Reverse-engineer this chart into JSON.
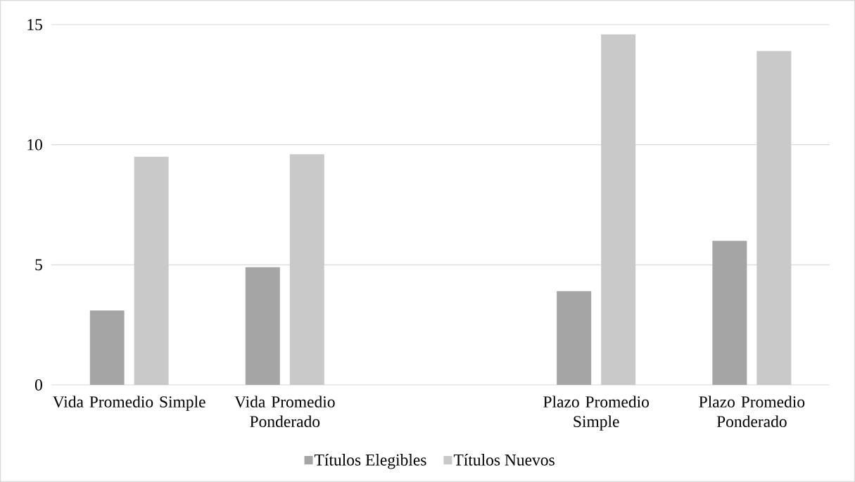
{
  "chart_data": {
    "type": "bar",
    "categories": [
      "Vida Promedio Simple",
      "Vida Promedio Ponderado",
      null,
      "Plazo Promedio Simple",
      "Plazo Promedio Ponderado"
    ],
    "series": [
      {
        "name": "Títulos Elegibles",
        "color": "#a5a5a5",
        "values": [
          3.1,
          4.9,
          null,
          3.9,
          6.0
        ]
      },
      {
        "name": "Títulos Nuevos",
        "color": "#c9c9c9",
        "values": [
          9.5,
          9.6,
          null,
          14.6,
          13.9
        ]
      }
    ],
    "ylim": [
      0,
      15
    ],
    "yticks": [
      0,
      5,
      10,
      15
    ],
    "grid": "y",
    "legend": "bottom"
  }
}
